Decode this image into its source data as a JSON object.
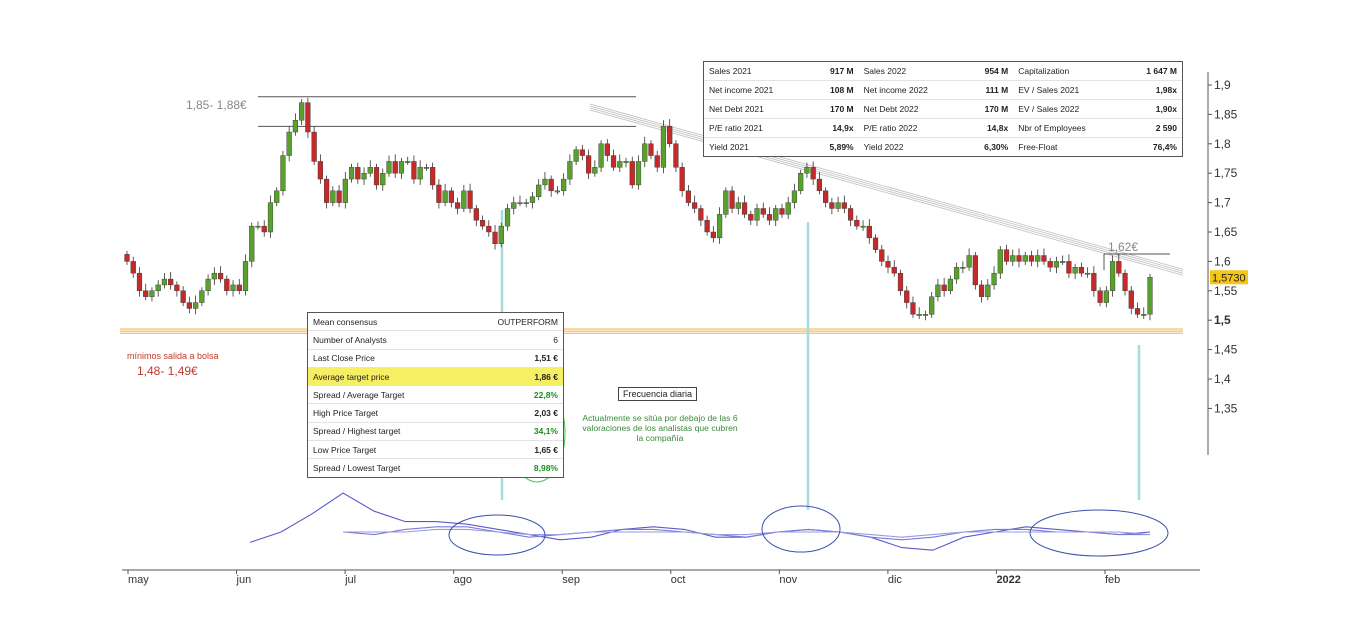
{
  "chart_data": {
    "type": "candlestick",
    "x_ticks": [
      "may",
      "jun",
      "jul",
      "ago",
      "sep",
      "oct",
      "nov",
      "dic",
      "2022",
      "feb"
    ],
    "y_ticks": [
      "1,9",
      "1,85",
      "1,8",
      "1,75",
      "1,7",
      "1,65",
      "1,6",
      "1,55",
      "1,5",
      "1,45",
      "1,4",
      "1,35"
    ],
    "ylim": [
      1.33,
      1.91
    ],
    "last_price_label": "1,5730",
    "last_price": 1.573,
    "daily_close": [
      1.6,
      1.58,
      1.55,
      1.54,
      1.55,
      1.56,
      1.57,
      1.56,
      1.55,
      1.53,
      1.52,
      1.53,
      1.55,
      1.57,
      1.58,
      1.57,
      1.55,
      1.56,
      1.55,
      1.6,
      1.66,
      1.66,
      1.65,
      1.7,
      1.72,
      1.78,
      1.82,
      1.84,
      1.87,
      1.82,
      1.77,
      1.74,
      1.7,
      1.72,
      1.7,
      1.74,
      1.76,
      1.74,
      1.75,
      1.76,
      1.73,
      1.75,
      1.77,
      1.75,
      1.77,
      1.77,
      1.74,
      1.76,
      1.76,
      1.73,
      1.7,
      1.72,
      1.7,
      1.69,
      1.72,
      1.69,
      1.67,
      1.66,
      1.65,
      1.63,
      1.66,
      1.69,
      1.7,
      1.7,
      1.7,
      1.71,
      1.73,
      1.74,
      1.72,
      1.72,
      1.74,
      1.77,
      1.79,
      1.78,
      1.75,
      1.76,
      1.8,
      1.78,
      1.76,
      1.77,
      1.77,
      1.73,
      1.77,
      1.8,
      1.78,
      1.76,
      1.83,
      1.8,
      1.76,
      1.72,
      1.7,
      1.69,
      1.67,
      1.65,
      1.64,
      1.68,
      1.72,
      1.69,
      1.7,
      1.68,
      1.67,
      1.69,
      1.68,
      1.67,
      1.69,
      1.68,
      1.7,
      1.72,
      1.75,
      1.76,
      1.74,
      1.72,
      1.7,
      1.69,
      1.7,
      1.69,
      1.67,
      1.66,
      1.66,
      1.64,
      1.62,
      1.6,
      1.59,
      1.58,
      1.55,
      1.53,
      1.51,
      1.51,
      1.51,
      1.54,
      1.56,
      1.55,
      1.57,
      1.59,
      1.59,
      1.61,
      1.56,
      1.54,
      1.56,
      1.58,
      1.62,
      1.6,
      1.61,
      1.6,
      1.61,
      1.6,
      1.61,
      1.6,
      1.59,
      1.6,
      1.6,
      1.58,
      1.59,
      1.58,
      1.58,
      1.55,
      1.53,
      1.55,
      1.6,
      1.58,
      1.55,
      1.52,
      1.51,
      1.51,
      1.573
    ],
    "resistance_zone": [
      1.85,
      1.88
    ],
    "support_zone": [
      1.48,
      1.49
    ],
    "downtrend_from": [
      1.85,
      1.59
    ],
    "series": [
      {
        "name": "",
        "color": "#5a5acc",
        "values": [
          1.68,
          1.72,
          1.79,
          1.87,
          1.8,
          1.76,
          1.76,
          1.75,
          1.73,
          1.71,
          1.69,
          1.7,
          1.73,
          1.74,
          1.73,
          1.7,
          1.7,
          1.72,
          1.73,
          1.72,
          1.7,
          1.66,
          1.65,
          1.7,
          1.72,
          1.74,
          1.73,
          1.72,
          1.71,
          1.72
        ]
      },
      {
        "name": "",
        "color": "#7a7ad8",
        "values": [
          null,
          null,
          null,
          1.72,
          1.71,
          1.73,
          1.74,
          1.74,
          1.72,
          1.7,
          1.71,
          1.72,
          1.73,
          1.73,
          1.72,
          1.71,
          1.7,
          1.72,
          1.73,
          1.72,
          1.7,
          1.69,
          1.7,
          1.72,
          1.73,
          1.73,
          1.72,
          1.72,
          1.71,
          1.71
        ]
      },
      {
        "name": "",
        "color": "#9a9ae0",
        "values": [
          null,
          null,
          null,
          1.72,
          1.72,
          1.72,
          1.73,
          1.73,
          1.72,
          1.71,
          1.71,
          1.72,
          1.72,
          1.72,
          1.72,
          1.71,
          1.71,
          1.72,
          1.72,
          1.72,
          1.71,
          1.7,
          1.71,
          1.72,
          1.72,
          1.72,
          1.72,
          1.72,
          1.72,
          1.71
        ]
      }
    ]
  },
  "annotations": {
    "high_zone_label": "1,85- 1,88€",
    "low_caption": "mínimos salida a bolsa",
    "low_zone_label": "1,48- 1,49€",
    "target_label": "1,62€",
    "frequency": "Frecuencia diaria",
    "note": "Actualmente se sitúa por debajo de las 6 valoraciones de los analistas que cubren la compañía"
  },
  "fundamentals": [
    [
      "Sales 2021",
      "917 M",
      "Sales 2022",
      "954 M",
      "Capitalization",
      "1 647 M"
    ],
    [
      "Net income 2021",
      "108 M",
      "Net income 2022",
      "111 M",
      "EV / Sales 2021",
      "1,98x"
    ],
    [
      "Net Debt 2021",
      "170 M",
      "Net Debt 2022",
      "170 M",
      "EV / Sales 2022",
      "1,90x"
    ],
    [
      "P/E ratio 2021",
      "14,9x",
      "P/E ratio 2022",
      "14,8x",
      "Nbr of Employees",
      "2 590"
    ],
    [
      "Yield 2021",
      "5,89%",
      "Yield 2022",
      "6,30%",
      "Free-Float",
      "76,4%"
    ]
  ],
  "consensus": [
    [
      "Mean consensus",
      "OUTPERFORM"
    ],
    [
      "Number of Analysts",
      "6"
    ],
    [
      "Last Close Price",
      "1,51 €"
    ],
    [
      "Average target price",
      "1,86 €"
    ],
    [
      "Spread / Average Target",
      "22,8%"
    ],
    [
      "High Price Target",
      "2,03 €"
    ],
    [
      "Spread / Highest target",
      "34,1%"
    ],
    [
      "Low Price Target",
      "1,65 €"
    ],
    [
      "Spread / Lowest Target",
      "8,98%"
    ]
  ],
  "colors": {
    "up": "#5aa02c",
    "down": "#c42a2a",
    "grid_line": "#777777",
    "highlight": "#f6ee63",
    "support": "#f5c77a",
    "marker": "#a8dcdc"
  }
}
